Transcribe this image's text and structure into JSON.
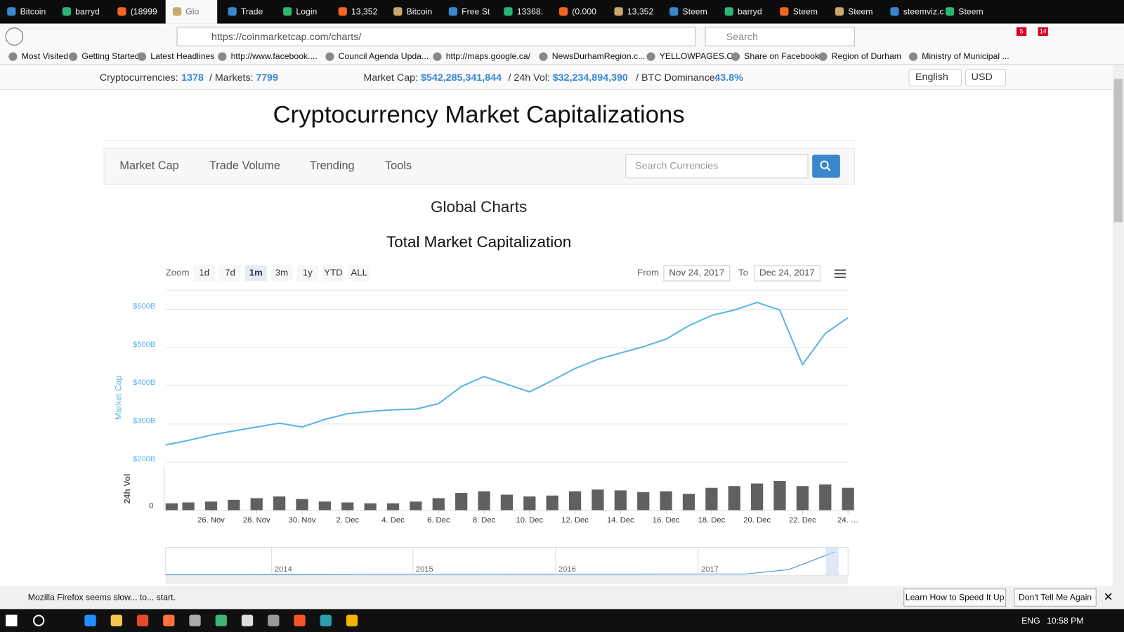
{
  "browser": {
    "tabs": [
      "Bitcoin",
      "barryd",
      "(18999",
      "Glo",
      "Trade",
      "Login",
      "13,352",
      "Bitcoin",
      "Free St",
      "13368.",
      "(0.000",
      "13,352",
      "Steem",
      "barryd",
      "Steem",
      "Steem",
      "steemviz.c",
      "Steem"
    ],
    "url": "https://coinmarketcap.com/charts/",
    "search_placeholder": "Search",
    "badges": [
      "5",
      "14"
    ],
    "bookmarks": [
      "Most Visited",
      "Getting Started",
      "Latest Headlines",
      "http://www.facebook....",
      "Council Agenda Upda...",
      "http://maps.google.ca/",
      "NewsDurhamRegion.c...",
      "YELLOWPAGES.CA",
      "Share on Facebook",
      "Region of Durham",
      "Ministry of Municipal ..."
    ]
  },
  "stats": {
    "cryptocurrencies_label": "Cryptocurrencies:",
    "cryptocurrencies": "1378",
    "markets_label": "/ Markets:",
    "markets": "7799",
    "market_cap_label": "Market Cap:",
    "market_cap": "$542,285,341,844",
    "vol_label": "/ 24h Vol:",
    "vol": "$32,234,894,390",
    "dominance_label": "/ BTC Dominance:",
    "dominance": "43.8%",
    "language": "English",
    "currency": "USD"
  },
  "header": {
    "title": "Cryptocurrency Market Capitalizations"
  },
  "nav": {
    "items": [
      "Market Cap",
      "Trade Volume",
      "Trending",
      "Tools"
    ],
    "search_placeholder": "Search Currencies"
  },
  "section_title": "Global Charts",
  "chart_controls": {
    "zoom_label": "Zoom",
    "zoom_buttons": [
      "1d",
      "7d",
      "1m",
      "3m",
      "1y",
      "YTD",
      "ALL"
    ],
    "from_label": "From",
    "from": "Nov 24, 2017",
    "to_label": "To",
    "to": "Dec 24, 2017"
  },
  "chart_data": [
    {
      "type": "line",
      "title": "Total Market Capitalization",
      "y_label": "Market Cap",
      "color": "#5ab4e5",
      "grid": true,
      "x": [
        "2017-11-24",
        "2017-11-25",
        "2017-11-26",
        "2017-11-27",
        "2017-11-28",
        "2017-11-29",
        "2017-11-30",
        "2017-12-01",
        "2017-12-02",
        "2017-12-03",
        "2017-12-04",
        "2017-12-05",
        "2017-12-06",
        "2017-12-07",
        "2017-12-08",
        "2017-12-09",
        "2017-12-10",
        "2017-12-11",
        "2017-12-12",
        "2017-12-13",
        "2017-12-14",
        "2017-12-15",
        "2017-12-16",
        "2017-12-17",
        "2017-12-18",
        "2017-12-19",
        "2017-12-20",
        "2017-12-21",
        "2017-12-22",
        "2017-12-23",
        "2017-12-24"
      ],
      "values": [
        245,
        257,
        271,
        282,
        292,
        302,
        292,
        312,
        327,
        333,
        337,
        339,
        353,
        398,
        424,
        404,
        384,
        414,
        445,
        469,
        486,
        502,
        522,
        557,
        584,
        598,
        618,
        598,
        455,
        537,
        578
      ],
      "xlim": [
        "2017-11-24",
        "2017-12-24"
      ],
      "xticks": [
        {
          "value": "2017-11-26",
          "label": "26. Nov"
        },
        {
          "value": "2017-11-28",
          "label": "28. Nov"
        },
        {
          "value": "2017-11-30",
          "label": "30. Nov"
        },
        {
          "value": "2017-12-02",
          "label": "2. Dec"
        },
        {
          "value": "2017-12-04",
          "label": "4. Dec"
        },
        {
          "value": "2017-12-06",
          "label": "6. Dec"
        },
        {
          "value": "2017-12-08",
          "label": "8. Dec"
        },
        {
          "value": "2017-12-10",
          "label": "10. Dec"
        },
        {
          "value": "2017-12-12",
          "label": "12. Dec"
        },
        {
          "value": "2017-12-14",
          "label": "14. Dec"
        },
        {
          "value": "2017-12-16",
          "label": "16. Dec"
        },
        {
          "value": "2017-12-18",
          "label": "18. Dec"
        },
        {
          "value": "2017-12-20",
          "label": "20. Dec"
        },
        {
          "value": "2017-12-22",
          "label": "22. Dec"
        },
        {
          "value": "2017-12-24",
          "label": "24. …"
        }
      ],
      "ylim": [
        200,
        650
      ],
      "yticks": [
        {
          "value": 200,
          "label": "$200B"
        },
        {
          "value": 300,
          "label": "$300B"
        },
        {
          "value": 400,
          "label": "$400B"
        },
        {
          "value": 500,
          "label": "$500B"
        },
        {
          "value": 600,
          "label": "$600B"
        }
      ]
    },
    {
      "type": "bar",
      "y_label": "24h Vol",
      "color": "#606060",
      "x": [
        "2017-11-24",
        "2017-11-25",
        "2017-11-26",
        "2017-11-27",
        "2017-11-28",
        "2017-11-29",
        "2017-11-30",
        "2017-12-01",
        "2017-12-02",
        "2017-12-03",
        "2017-12-04",
        "2017-12-05",
        "2017-12-06",
        "2017-12-07",
        "2017-12-08",
        "2017-12-09",
        "2017-12-10",
        "2017-12-11",
        "2017-12-12",
        "2017-12-13",
        "2017-12-14",
        "2017-12-15",
        "2017-12-16",
        "2017-12-17",
        "2017-12-18",
        "2017-12-19",
        "2017-12-20",
        "2017-12-21",
        "2017-12-22",
        "2017-12-23",
        "2017-12-24"
      ],
      "values": [
        8,
        9,
        10,
        12,
        14,
        16,
        13,
        10,
        9,
        8,
        8,
        10,
        14,
        20,
        22,
        18,
        16,
        17,
        22,
        24,
        23,
        21,
        22,
        19,
        26,
        28,
        31,
        34,
        28,
        30,
        26
      ],
      "ylim": [
        0,
        50
      ],
      "yticks": [
        0
      ]
    }
  ],
  "navigator": {
    "labels": [
      "2014",
      "2015",
      "2016",
      "2017"
    ]
  },
  "notification": {
    "message": "Mozilla Firefox seems slow... to... start.",
    "buttons": [
      "Learn How to Speed It Up",
      "Don't Tell Me Again"
    ]
  },
  "taskbar": {
    "language": "ENG",
    "time": "10:58 PM"
  }
}
